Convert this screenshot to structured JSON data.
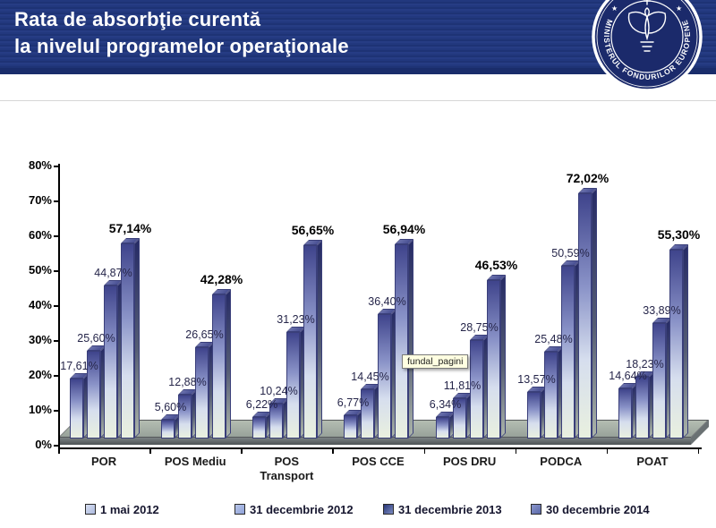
{
  "header": {
    "title_line1": "Rata de absorbţie curentă",
    "title_line2": "la nivelul programelor operaţionale",
    "seal_text": "MINISTERUL FONDURILOR EUROPENE",
    "seal_star": "★"
  },
  "tooltip": {
    "text": "fundal_pagini"
  },
  "chart_data": {
    "type": "bar",
    "title": "Rata de absorbţie curentă la nivelul programelor operaţionale",
    "categories": [
      "POR",
      "POS Mediu",
      "POS Transport",
      "POS CCE",
      "POS DRU",
      "PODCA",
      "POAT"
    ],
    "series": [
      {
        "name": "1 mai 2012",
        "values": [
          17.61,
          5.6,
          6.22,
          6.77,
          6.34,
          13.57,
          14.64
        ],
        "labels": [
          "17,61%",
          "5,60%",
          "6,22%",
          "6,77%",
          "6,34%",
          "13,57%",
          "14,64%"
        ]
      },
      {
        "name": "31 decembrie 2012",
        "values": [
          25.6,
          12.88,
          10.24,
          14.45,
          11.81,
          25.48,
          18.23
        ],
        "labels": [
          "25,60%",
          "12,88%",
          "10,24%",
          "14,45%",
          "11,81%",
          "25,48%",
          "18,23%"
        ]
      },
      {
        "name": "31 decembrie 2013",
        "values": [
          44.87,
          26.65,
          31.23,
          36.4,
          28.75,
          50.59,
          33.89
        ],
        "labels": [
          "44,87%",
          "26,65%",
          "31,23%",
          "36,40%",
          "28,75%",
          "50,59%",
          "33,89%"
        ]
      },
      {
        "name": "30 decembrie 2014",
        "values": [
          57.14,
          42.28,
          56.65,
          56.94,
          46.53,
          72.02,
          55.3
        ],
        "labels": [
          "57,14%",
          "42,28%",
          "56,65%",
          "56,94%",
          "46,53%",
          "72,02%",
          "55,30%"
        ]
      }
    ],
    "y_ticks": [
      "0%",
      "10%",
      "20%",
      "30%",
      "40%",
      "50%",
      "60%",
      "70%",
      "80%"
    ],
    "ylim": [
      0,
      80
    ],
    "grid": false,
    "legend_position": "bottom"
  },
  "colors": {
    "header_bg": "#203578",
    "header_text": "#ffffff",
    "seal_bg": "#1b2a6b",
    "bar_top": "#3f448c",
    "bar_mid": "#8a93c8",
    "bar_light": "#d6deee",
    "bar_bottom": "#e9f0df",
    "bar_side_dark": "#272c66",
    "bar_side_mid": "#555d74",
    "bar_side_light": "#aab3a8",
    "bar_top_face_a": "#6a71ad",
    "bar_top_face_b": "#474e91",
    "bar_border": "#3a3f7a",
    "floor_top_a": "#b4bdb2",
    "floor_top_b": "#98a29a",
    "floor_front_a": "#7b8284",
    "floor_front_b": "#4e5456",
    "axis": "#000000",
    "tooltip_bg": "#ffffe1",
    "legend_markers": [
      [
        "#d7def1",
        "#aebbdf"
      ],
      [
        "#b9c6ea",
        "#8fa2d8"
      ],
      [
        "#273677",
        "#7d8cc2"
      ],
      [
        "#8b97cd",
        "#5a68a8"
      ]
    ]
  }
}
